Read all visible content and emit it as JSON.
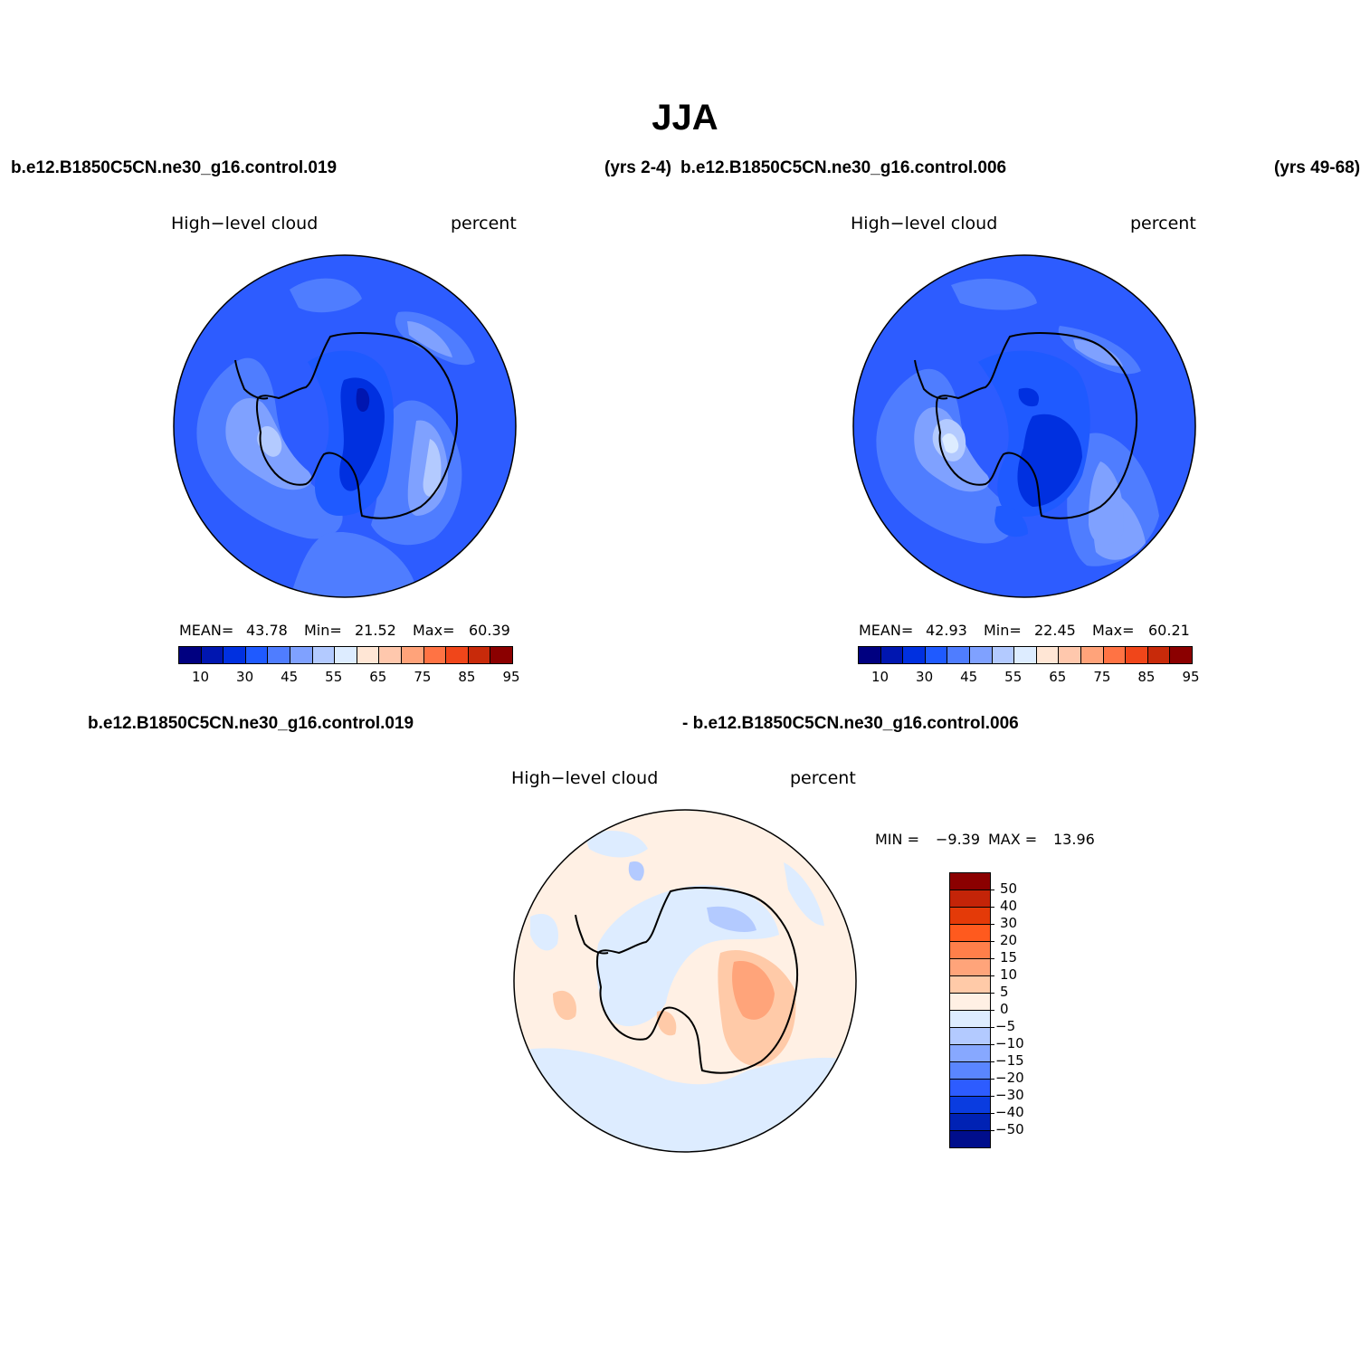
{
  "title": "JJA",
  "header": {
    "case_a": "b.e12.B1850C5CN.ne30_g16.control.019",
    "years_a": "(yrs 2-4)",
    "case_b": "b.e12.B1850C5CN.ne30_g16.control.006",
    "years_b": "(yrs 49-68)"
  },
  "diff_header": {
    "case_a": "b.e12.B1850C5CN.ne30_g16.control.019",
    "case_b": "- b.e12.B1850C5CN.ne30_g16.control.006"
  },
  "panels": [
    {
      "variable": "High−level cloud",
      "units": "percent",
      "mean_label": "MEAN=",
      "mean": "43.78",
      "min_label": "Min=",
      "min": "21.52",
      "max_label": "Max=",
      "max": "60.39"
    },
    {
      "variable": "High−level cloud",
      "units": "percent",
      "mean_label": "MEAN=",
      "mean": "42.93",
      "min_label": "Min=",
      "min": "22.45",
      "max_label": "Max=",
      "max": "60.21"
    }
  ],
  "diff_panel": {
    "variable": "High−level cloud",
    "units": "percent",
    "min_label": "MIN =",
    "min": "−9.39",
    "max_label": "MAX =",
    "max": "13.96"
  },
  "colorbar": {
    "colors": [
      "#000080",
      "#0016b0",
      "#0030e0",
      "#1f5aff",
      "#4f7dff",
      "#7fa1ff",
      "#b3caff",
      "#ddecff",
      "#ffe6d5",
      "#ffc8ad",
      "#ffa37a",
      "#ff7344",
      "#f0461a",
      "#c82a0a",
      "#8b0000"
    ],
    "labels": [
      "10",
      "30",
      "45",
      "55",
      "65",
      "75",
      "85",
      "95"
    ]
  },
  "diff_colorbar": {
    "colors": [
      "#8b0000",
      "#c42408",
      "#e43a08",
      "#ff5a1e",
      "#ff7f4a",
      "#ffa47a",
      "#ffcaa8",
      "#fff0e4",
      "#ddecff",
      "#b3caff",
      "#87a8ff",
      "#5a86ff",
      "#2d5cff",
      "#0a3ce0",
      "#0022b4",
      "#000e8c"
    ],
    "labels": [
      "50",
      "40",
      "30",
      "20",
      "15",
      "10",
      "5",
      "0",
      "−5",
      "−10",
      "−15",
      "−20",
      "−30",
      "−40",
      "−50"
    ]
  }
}
